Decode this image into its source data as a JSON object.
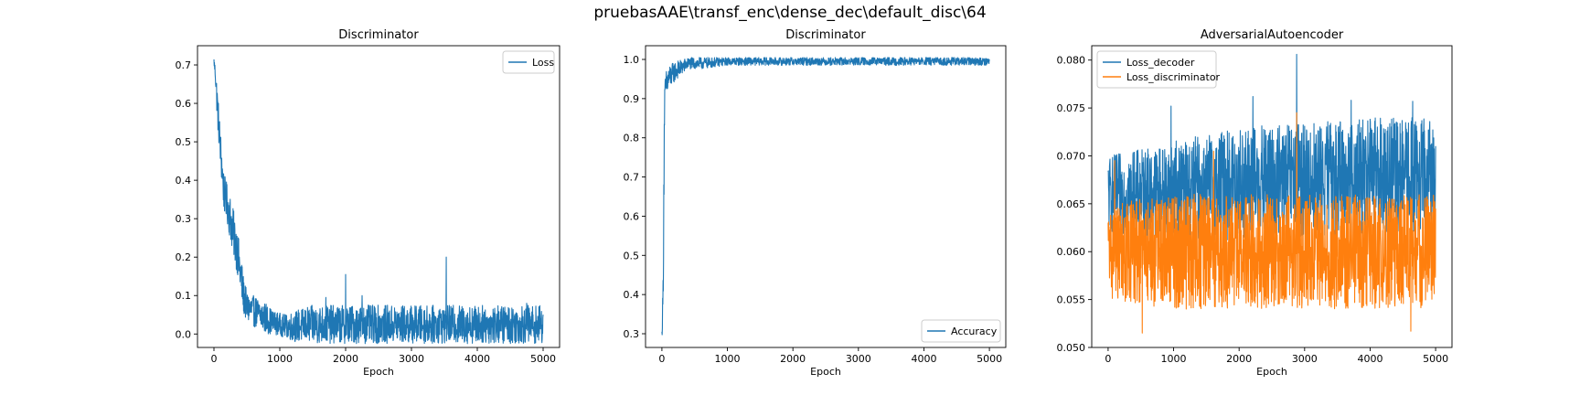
{
  "figure": {
    "suptitle": "pruebasAAE\\transf_enc\\dense_dec\\default_disc\\64"
  },
  "colors": {
    "blue": "#1f77b4",
    "orange": "#ff7f0e"
  },
  "chart_data": [
    {
      "type": "line",
      "title": "Discriminator",
      "xlabel": "Epoch",
      "ylabel": "",
      "xlim": [
        -250,
        5250
      ],
      "ylim": [
        -0.035,
        0.75
      ],
      "xticks": [
        0,
        1000,
        2000,
        3000,
        4000,
        5000
      ],
      "yticks": [
        0.0,
        0.1,
        0.2,
        0.3,
        0.4,
        0.5,
        0.6,
        0.7
      ],
      "ytick_labels": [
        "0.0",
        "0.1",
        "0.2",
        "0.3",
        "0.4",
        "0.5",
        "0.6",
        "0.7"
      ],
      "legend": "upper right",
      "series": [
        {
          "name": "Loss",
          "color": "#1f77b4",
          "x": [
            0,
            20,
            50,
            100,
            150,
            200,
            250,
            300,
            350,
            400,
            450,
            500,
            600,
            700,
            800,
            900,
            1000,
            1100,
            1200,
            1500,
            2000,
            2500,
            3000,
            3500,
            4000,
            4500,
            5000
          ],
          "y": [
            0.71,
            0.68,
            0.6,
            0.48,
            0.37,
            0.34,
            0.3,
            0.26,
            0.22,
            0.16,
            0.1,
            0.07,
            0.06,
            0.05,
            0.04,
            0.03,
            0.025,
            0.02,
            0.02,
            0.025,
            0.025,
            0.025,
            0.025,
            0.025,
            0.025,
            0.025,
            0.025
          ],
          "band": [
            0.01,
            0.02,
            0.05,
            0.05,
            0.05,
            0.05,
            0.06,
            0.06,
            0.06,
            0.06,
            0.05,
            0.04,
            0.04,
            0.04,
            0.04,
            0.03,
            0.03,
            0.03,
            0.04,
            0.05,
            0.05,
            0.05,
            0.05,
            0.05,
            0.05,
            0.05,
            0.05
          ],
          "spikes": [
            [
              2000,
              0.155
            ],
            [
              3530,
              0.2
            ],
            [
              2250,
              0.1
            ],
            [
              1700,
              0.095
            ],
            [
              4750,
              0.08
            ]
          ]
        }
      ]
    },
    {
      "type": "line",
      "title": "Discriminator",
      "xlabel": "Epoch",
      "ylabel": "",
      "xlim": [
        -250,
        5250
      ],
      "ylim": [
        0.265,
        1.035
      ],
      "xticks": [
        0,
        1000,
        2000,
        3000,
        4000,
        5000
      ],
      "yticks": [
        0.3,
        0.4,
        0.5,
        0.6,
        0.7,
        0.8,
        0.9,
        1.0
      ],
      "ytick_labels": [
        "0.3",
        "0.4",
        "0.5",
        "0.6",
        "0.7",
        "0.8",
        "0.9",
        "1.0"
      ],
      "legend": "lower right",
      "series": [
        {
          "name": "Accuracy",
          "color": "#1f77b4",
          "x": [
            0,
            10,
            20,
            30,
            40,
            60,
            100,
            150,
            200,
            300,
            400,
            600,
            1000,
            2000,
            3000,
            4000,
            5000
          ],
          "y": [
            0.3,
            0.35,
            0.42,
            0.7,
            0.88,
            0.93,
            0.95,
            0.96,
            0.97,
            0.98,
            0.99,
            0.99,
            0.995,
            0.995,
            0.995,
            0.995,
            0.995
          ],
          "band": [
            0.01,
            0.04,
            0.05,
            0.1,
            0.06,
            0.04,
            0.035,
            0.03,
            0.025,
            0.02,
            0.015,
            0.015,
            0.01,
            0.01,
            0.01,
            0.01,
            0.01
          ],
          "spikes": []
        }
      ]
    },
    {
      "type": "line",
      "title": "AdversarialAutoencoder",
      "xlabel": "Epoch",
      "ylabel": "",
      "xlim": [
        -250,
        5250
      ],
      "ylim": [
        0.05,
        0.0815
      ],
      "xticks": [
        0,
        1000,
        2000,
        3000,
        4000,
        5000
      ],
      "yticks": [
        0.05,
        0.055,
        0.06,
        0.065,
        0.07,
        0.075,
        0.08
      ],
      "ytick_labels": [
        "0.050",
        "0.055",
        "0.060",
        "0.065",
        "0.070",
        "0.075",
        "0.080"
      ],
      "legend": "upper left",
      "series": [
        {
          "name": "Loss_decoder",
          "color": "#1f77b4",
          "x": [
            0,
            1000,
            2000,
            3000,
            4000,
            5000
          ],
          "y": [
            0.066,
            0.0665,
            0.067,
            0.0675,
            0.068,
            0.068
          ],
          "band": [
            0.004,
            0.005,
            0.006,
            0.006,
            0.006,
            0.006
          ],
          "spikes": [
            [
              2880,
              0.0806
            ],
            [
              2210,
              0.0762
            ],
            [
              3710,
              0.0758
            ],
            [
              4650,
              0.0757
            ],
            [
              960,
              0.0752
            ]
          ]
        },
        {
          "name": "Loss_discriminator",
          "color": "#ff7f0e",
          "x": [
            0,
            1000,
            2000,
            3000,
            4000,
            5000
          ],
          "y": [
            0.06,
            0.06,
            0.06,
            0.06,
            0.06,
            0.06
          ],
          "band": [
            0.005,
            0.006,
            0.006,
            0.006,
            0.006,
            0.006
          ],
          "spikes": [
            [
              2880,
              0.0745
            ],
            [
              520,
              0.0515
            ],
            [
              4620,
              0.0517
            ],
            [
              100,
              0.0695
            ],
            [
              1610,
              0.0705
            ]
          ]
        }
      ]
    }
  ]
}
